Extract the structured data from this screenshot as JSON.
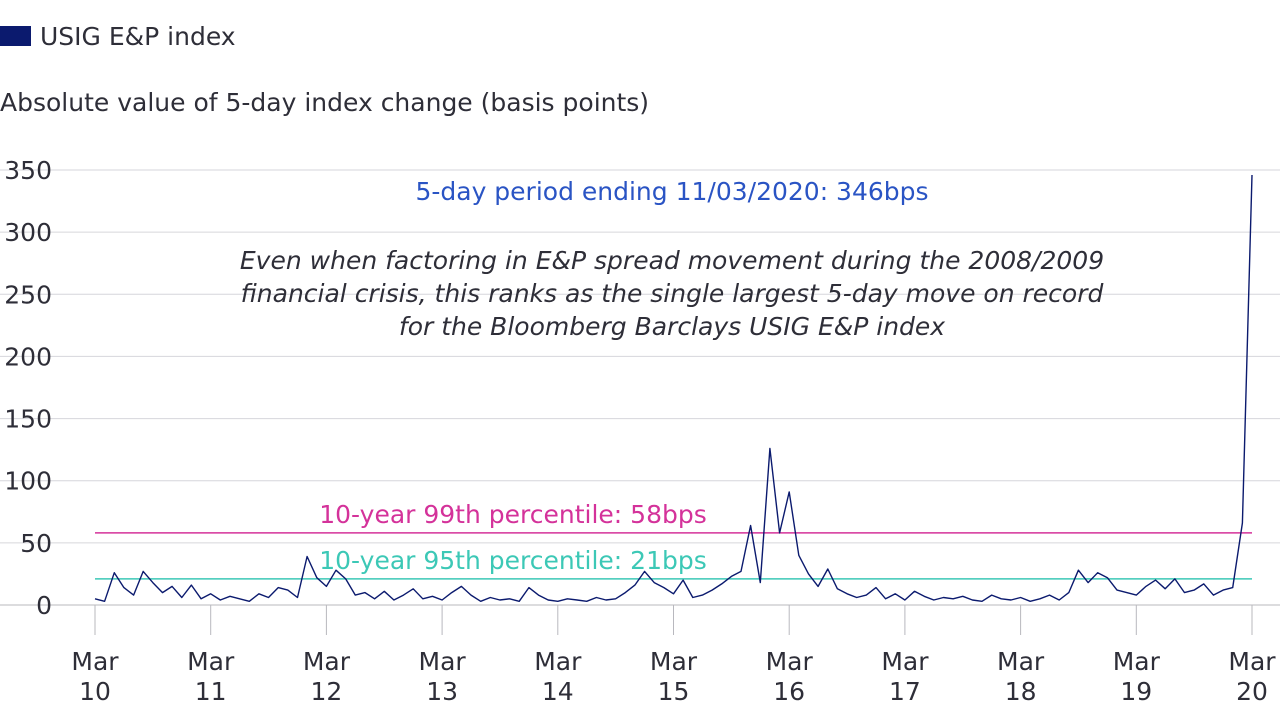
{
  "legend": {
    "label": "USIG E&P index",
    "color": "#0b1a6e"
  },
  "chart_data": {
    "type": "line",
    "title": "",
    "ylabel": "Absolute value of 5-day index change (basis points)",
    "xlabel": "",
    "ylim": [
      0,
      350
    ],
    "y_ticks": [
      0,
      50,
      100,
      150,
      200,
      250,
      300,
      350
    ],
    "x_range": [
      "2010-03",
      "2020-03"
    ],
    "x_ticks": [
      {
        "month": "Mar",
        "year": "10"
      },
      {
        "month": "Mar",
        "year": "11"
      },
      {
        "month": "Mar",
        "year": "12"
      },
      {
        "month": "Mar",
        "year": "13"
      },
      {
        "month": "Mar",
        "year": "14"
      },
      {
        "month": "Mar",
        "year": "15"
      },
      {
        "month": "Mar",
        "year": "16"
      },
      {
        "month": "Mar",
        "year": "17"
      },
      {
        "month": "Mar",
        "year": "18"
      },
      {
        "month": "Mar",
        "year": "19"
      },
      {
        "month": "Mar",
        "year": "20"
      }
    ],
    "grid": true,
    "series": [
      {
        "name": "USIG E&P index",
        "color": "#0b1a6e",
        "points": [
          [
            "2010-03",
            5
          ],
          [
            "2010-04",
            3
          ],
          [
            "2010-05",
            26
          ],
          [
            "2010-06",
            14
          ],
          [
            "2010-07",
            8
          ],
          [
            "2010-08",
            27
          ],
          [
            "2010-09",
            18
          ],
          [
            "2010-10",
            10
          ],
          [
            "2010-11",
            15
          ],
          [
            "2010-12",
            6
          ],
          [
            "2011-01",
            16
          ],
          [
            "2011-02",
            5
          ],
          [
            "2011-03",
            9
          ],
          [
            "2011-04",
            4
          ],
          [
            "2011-05",
            7
          ],
          [
            "2011-06",
            5
          ],
          [
            "2011-07",
            3
          ],
          [
            "2011-08",
            9
          ],
          [
            "2011-09",
            6
          ],
          [
            "2011-10",
            14
          ],
          [
            "2011-11",
            12
          ],
          [
            "2011-12",
            6
          ],
          [
            "2012-01",
            39
          ],
          [
            "2012-02",
            22
          ],
          [
            "2012-03",
            15
          ],
          [
            "2012-04",
            28
          ],
          [
            "2012-05",
            21
          ],
          [
            "2012-06",
            8
          ],
          [
            "2012-07",
            10
          ],
          [
            "2012-08",
            5
          ],
          [
            "2012-09",
            11
          ],
          [
            "2012-10",
            4
          ],
          [
            "2012-11",
            8
          ],
          [
            "2012-12",
            13
          ],
          [
            "2013-01",
            5
          ],
          [
            "2013-02",
            7
          ],
          [
            "2013-03",
            4
          ],
          [
            "2013-04",
            10
          ],
          [
            "2013-05",
            15
          ],
          [
            "2013-06",
            8
          ],
          [
            "2013-07",
            3
          ],
          [
            "2013-08",
            6
          ],
          [
            "2013-09",
            4
          ],
          [
            "2013-10",
            5
          ],
          [
            "2013-11",
            3
          ],
          [
            "2013-12",
            14
          ],
          [
            "2014-01",
            8
          ],
          [
            "2014-02",
            4
          ],
          [
            "2014-03",
            3
          ],
          [
            "2014-04",
            5
          ],
          [
            "2014-05",
            4
          ],
          [
            "2014-06",
            3
          ],
          [
            "2014-07",
            6
          ],
          [
            "2014-08",
            4
          ],
          [
            "2014-09",
            5
          ],
          [
            "2014-10",
            10
          ],
          [
            "2014-11",
            16
          ],
          [
            "2014-12",
            27
          ],
          [
            "2015-01",
            18
          ],
          [
            "2015-02",
            14
          ],
          [
            "2015-03",
            9
          ],
          [
            "2015-04",
            20
          ],
          [
            "2015-05",
            6
          ],
          [
            "2015-06",
            8
          ],
          [
            "2015-07",
            12
          ],
          [
            "2015-08",
            17
          ],
          [
            "2015-09",
            23
          ],
          [
            "2015-10",
            27
          ],
          [
            "2015-11",
            64
          ],
          [
            "2015-12",
            18
          ],
          [
            "2016-01",
            126
          ],
          [
            "2016-02",
            58
          ],
          [
            "2016-03",
            91
          ],
          [
            "2016-04",
            40
          ],
          [
            "2016-05",
            25
          ],
          [
            "2016-06",
            15
          ],
          [
            "2016-07",
            29
          ],
          [
            "2016-08",
            13
          ],
          [
            "2016-09",
            9
          ],
          [
            "2016-10",
            6
          ],
          [
            "2016-11",
            8
          ],
          [
            "2016-12",
            14
          ],
          [
            "2017-01",
            5
          ],
          [
            "2017-02",
            9
          ],
          [
            "2017-03",
            4
          ],
          [
            "2017-04",
            11
          ],
          [
            "2017-05",
            7
          ],
          [
            "2017-06",
            4
          ],
          [
            "2017-07",
            6
          ],
          [
            "2017-08",
            5
          ],
          [
            "2017-09",
            7
          ],
          [
            "2017-10",
            4
          ],
          [
            "2017-11",
            3
          ],
          [
            "2017-12",
            8
          ],
          [
            "2018-01",
            5
          ],
          [
            "2018-02",
            4
          ],
          [
            "2018-03",
            6
          ],
          [
            "2018-04",
            3
          ],
          [
            "2018-05",
            5
          ],
          [
            "2018-06",
            8
          ],
          [
            "2018-07",
            4
          ],
          [
            "2018-08",
            10
          ],
          [
            "2018-09",
            28
          ],
          [
            "2018-10",
            18
          ],
          [
            "2018-11",
            26
          ],
          [
            "2018-12",
            22
          ],
          [
            "2019-01",
            12
          ],
          [
            "2019-02",
            10
          ],
          [
            "2019-03",
            8
          ],
          [
            "2019-04",
            15
          ],
          [
            "2019-05",
            20
          ],
          [
            "2019-06",
            13
          ],
          [
            "2019-07",
            21
          ],
          [
            "2019-08",
            10
          ],
          [
            "2019-09",
            12
          ],
          [
            "2019-10",
            17
          ],
          [
            "2019-11",
            8
          ],
          [
            "2019-12",
            12
          ],
          [
            "2020-01",
            14
          ],
          [
            "2020-02",
            66
          ],
          [
            "2020-03",
            346
          ]
        ]
      }
    ],
    "reference_lines": [
      {
        "label": "10-year 99th percentile: 58bps",
        "value": 58,
        "color": "#d4329a"
      },
      {
        "label": "10-year 95th percentile: 21bps",
        "value": 21,
        "color": "#3cc8b6"
      }
    ],
    "annotations": [
      {
        "text": "5-day period ending 11/03/2020: 346bps",
        "color": "#2a54c4"
      },
      {
        "lines": [
          "Even when factoring in E&P spread movement during the 2008/2009",
          "financial crisis, this ranks as the single largest 5-day move on record",
          "for the Bloomberg Barclays USIG E&P index"
        ],
        "color": "#2e2e38"
      }
    ]
  }
}
